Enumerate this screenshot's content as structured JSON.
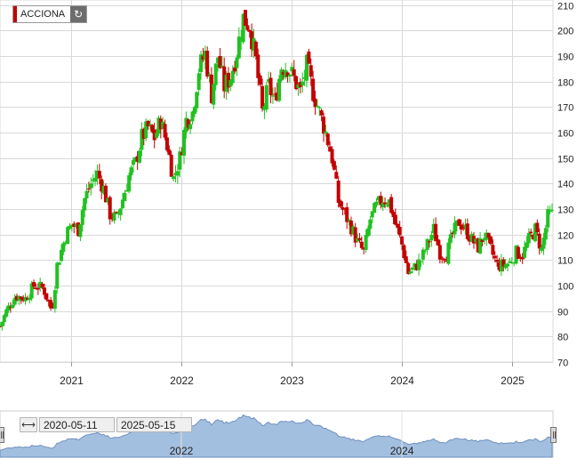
{
  "legend": {
    "name": "ACCIONA",
    "refresh_icon": "refresh-icon",
    "swatch_color": "#c40000"
  },
  "range_selector": {
    "from": "2020-05-11",
    "to": "2025-05-15",
    "toggle_icon": "range-arrows-icon"
  },
  "navigator": {
    "labels": [
      "2022",
      "2024"
    ]
  },
  "colors": {
    "up": "#21c121",
    "down": "#c40000",
    "grid": "#d9d9d9",
    "navigator_fill": "#a3bfe0",
    "navigator_line": "#6e8fbf"
  },
  "chart_data": {
    "type": "candlestick",
    "title": "",
    "xlabel": "",
    "ylabel": "",
    "ylim": [
      70,
      212
    ],
    "y_ticks": [
      70,
      80,
      90,
      100,
      110,
      120,
      130,
      140,
      150,
      160,
      170,
      180,
      190,
      200,
      210
    ],
    "x_ticks": [
      "2021",
      "2022",
      "2023",
      "2024",
      "2025"
    ],
    "grid": true,
    "interval": "weekly",
    "x_range": [
      "2020-05-11",
      "2025-05-15"
    ],
    "close_series": [
      [
        "2020-05-11",
        84
      ],
      [
        "2020-06-01",
        90
      ],
      [
        "2020-07-01",
        96
      ],
      [
        "2020-08-03",
        95
      ],
      [
        "2020-09-01",
        100
      ],
      [
        "2020-10-01",
        99
      ],
      [
        "2020-10-30",
        90
      ],
      [
        "2020-11-16",
        108
      ],
      [
        "2020-12-15",
        120
      ],
      [
        "2021-01-04",
        124
      ],
      [
        "2021-01-25",
        122
      ],
      [
        "2021-02-15",
        134
      ],
      [
        "2021-03-08",
        140
      ],
      [
        "2021-03-29",
        144
      ],
      [
        "2021-04-19",
        138
      ],
      [
        "2021-05-10",
        128
      ],
      [
        "2021-05-31",
        126
      ],
      [
        "2021-06-21",
        134
      ],
      [
        "2021-07-12",
        143
      ],
      [
        "2021-08-02",
        148
      ],
      [
        "2021-08-23",
        158
      ],
      [
        "2021-09-13",
        162
      ],
      [
        "2021-10-04",
        158
      ],
      [
        "2021-10-25",
        165
      ],
      [
        "2021-11-15",
        155
      ],
      [
        "2021-12-06",
        142
      ],
      [
        "2021-12-27",
        150
      ],
      [
        "2022-01-17",
        165
      ],
      [
        "2022-02-07",
        168
      ],
      [
        "2022-02-28",
        185
      ],
      [
        "2022-03-21",
        191
      ],
      [
        "2022-04-11",
        175
      ],
      [
        "2022-05-02",
        190
      ],
      [
        "2022-05-23",
        178
      ],
      [
        "2022-06-13",
        182
      ],
      [
        "2022-07-04",
        192
      ],
      [
        "2022-07-25",
        205
      ],
      [
        "2022-08-15",
        202
      ],
      [
        "2022-09-05",
        188
      ],
      [
        "2022-09-26",
        168
      ],
      [
        "2022-10-17",
        178
      ],
      [
        "2022-11-07",
        172
      ],
      [
        "2022-11-28",
        186
      ],
      [
        "2022-12-19",
        186
      ],
      [
        "2023-01-09",
        181
      ],
      [
        "2023-01-30",
        176
      ],
      [
        "2023-02-20",
        186
      ],
      [
        "2023-03-13",
        176
      ],
      [
        "2023-04-03",
        168
      ],
      [
        "2023-04-24",
        160
      ],
      [
        "2023-05-15",
        150
      ],
      [
        "2023-06-05",
        133
      ],
      [
        "2023-06-26",
        128
      ],
      [
        "2023-07-17",
        123
      ],
      [
        "2023-08-07",
        117
      ],
      [
        "2023-08-28",
        113
      ],
      [
        "2023-09-18",
        126
      ],
      [
        "2023-10-09",
        131
      ],
      [
        "2023-10-30",
        134
      ],
      [
        "2023-11-20",
        133
      ],
      [
        "2023-12-11",
        124
      ],
      [
        "2024-01-01",
        116
      ],
      [
        "2024-01-22",
        105
      ],
      [
        "2024-02-12",
        107
      ],
      [
        "2024-03-04",
        110
      ],
      [
        "2024-03-25",
        116
      ],
      [
        "2024-04-15",
        122
      ],
      [
        "2024-05-06",
        113
      ],
      [
        "2024-05-27",
        112
      ],
      [
        "2024-06-17",
        120
      ],
      [
        "2024-07-08",
        125
      ],
      [
        "2024-07-29",
        122
      ],
      [
        "2024-08-19",
        118
      ],
      [
        "2024-09-09",
        115
      ],
      [
        "2024-09-30",
        120
      ],
      [
        "2024-10-21",
        114
      ],
      [
        "2024-11-11",
        108
      ],
      [
        "2024-12-02",
        108
      ],
      [
        "2024-12-23",
        109
      ],
      [
        "2025-01-13",
        113
      ],
      [
        "2025-02-03",
        112
      ],
      [
        "2025-02-24",
        118
      ],
      [
        "2025-03-17",
        122
      ],
      [
        "2025-04-07",
        114
      ],
      [
        "2025-04-28",
        127
      ],
      [
        "2025-05-15",
        128
      ]
    ]
  }
}
